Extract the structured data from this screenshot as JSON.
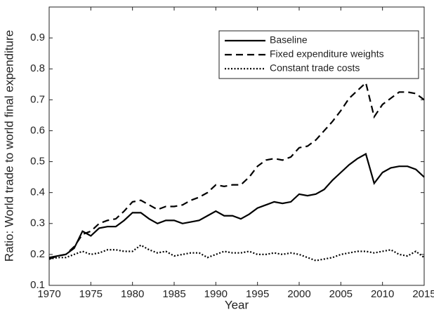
{
  "chart_data": {
    "type": "line",
    "xlabel": "Year",
    "ylabel": "Ratio: World trade to world final expenditure",
    "x": [
      1970,
      1971,
      1972,
      1973,
      1974,
      1975,
      1976,
      1977,
      1978,
      1979,
      1980,
      1981,
      1982,
      1983,
      1984,
      1985,
      1986,
      1987,
      1988,
      1989,
      1990,
      1991,
      1992,
      1993,
      1994,
      1995,
      1996,
      1997,
      1998,
      1999,
      2000,
      2001,
      2002,
      2003,
      2004,
      2005,
      2006,
      2007,
      2008,
      2009,
      2010,
      2011,
      2012,
      2013,
      2014,
      2015
    ],
    "series": [
      {
        "name": "Baseline",
        "color": "#000000",
        "linestyle": "solid",
        "values": [
          0.19,
          0.195,
          0.2,
          0.22,
          0.275,
          0.26,
          0.285,
          0.29,
          0.29,
          0.31,
          0.335,
          0.335,
          0.315,
          0.3,
          0.31,
          0.31,
          0.3,
          0.305,
          0.31,
          0.325,
          0.34,
          0.325,
          0.325,
          0.315,
          0.33,
          0.35,
          0.36,
          0.37,
          0.365,
          0.37,
          0.395,
          0.39,
          0.395,
          0.41,
          0.44,
          0.465,
          0.49,
          0.51,
          0.525,
          0.43,
          0.465,
          0.48,
          0.485,
          0.485,
          0.475,
          0.45
        ]
      },
      {
        "name": "Fixed expenditure weights",
        "color": "#000000",
        "linestyle": "dashed",
        "values": [
          0.185,
          0.195,
          0.2,
          0.225,
          0.265,
          0.275,
          0.3,
          0.31,
          0.315,
          0.34,
          0.37,
          0.375,
          0.36,
          0.345,
          0.355,
          0.355,
          0.36,
          0.375,
          0.385,
          0.4,
          0.425,
          0.42,
          0.425,
          0.425,
          0.45,
          0.485,
          0.505,
          0.51,
          0.505,
          0.515,
          0.545,
          0.55,
          0.57,
          0.6,
          0.63,
          0.665,
          0.705,
          0.73,
          0.755,
          0.645,
          0.685,
          0.705,
          0.725,
          0.725,
          0.72,
          0.7
        ]
      },
      {
        "name": "Constant trade costs",
        "color": "#000000",
        "linestyle": "dotted",
        "values": [
          0.185,
          0.19,
          0.19,
          0.2,
          0.21,
          0.2,
          0.205,
          0.215,
          0.215,
          0.21,
          0.21,
          0.23,
          0.215,
          0.205,
          0.21,
          0.195,
          0.2,
          0.205,
          0.205,
          0.19,
          0.2,
          0.21,
          0.205,
          0.205,
          0.21,
          0.2,
          0.2,
          0.205,
          0.2,
          0.205,
          0.2,
          0.19,
          0.18,
          0.185,
          0.19,
          0.2,
          0.205,
          0.21,
          0.21,
          0.205,
          0.21,
          0.215,
          0.2,
          0.195,
          0.21,
          0.19
        ]
      }
    ],
    "xlim": [
      1970,
      2015
    ],
    "xticks": [
      1970,
      1975,
      1980,
      1985,
      1990,
      1995,
      2000,
      2005,
      2010,
      2015
    ],
    "ylim": [
      0.1,
      1.0
    ],
    "yticks": [
      0.1,
      0.2,
      0.3,
      0.4,
      0.5,
      0.6,
      0.7,
      0.8,
      0.9
    ],
    "legend": "upper right",
    "grid": false
  }
}
